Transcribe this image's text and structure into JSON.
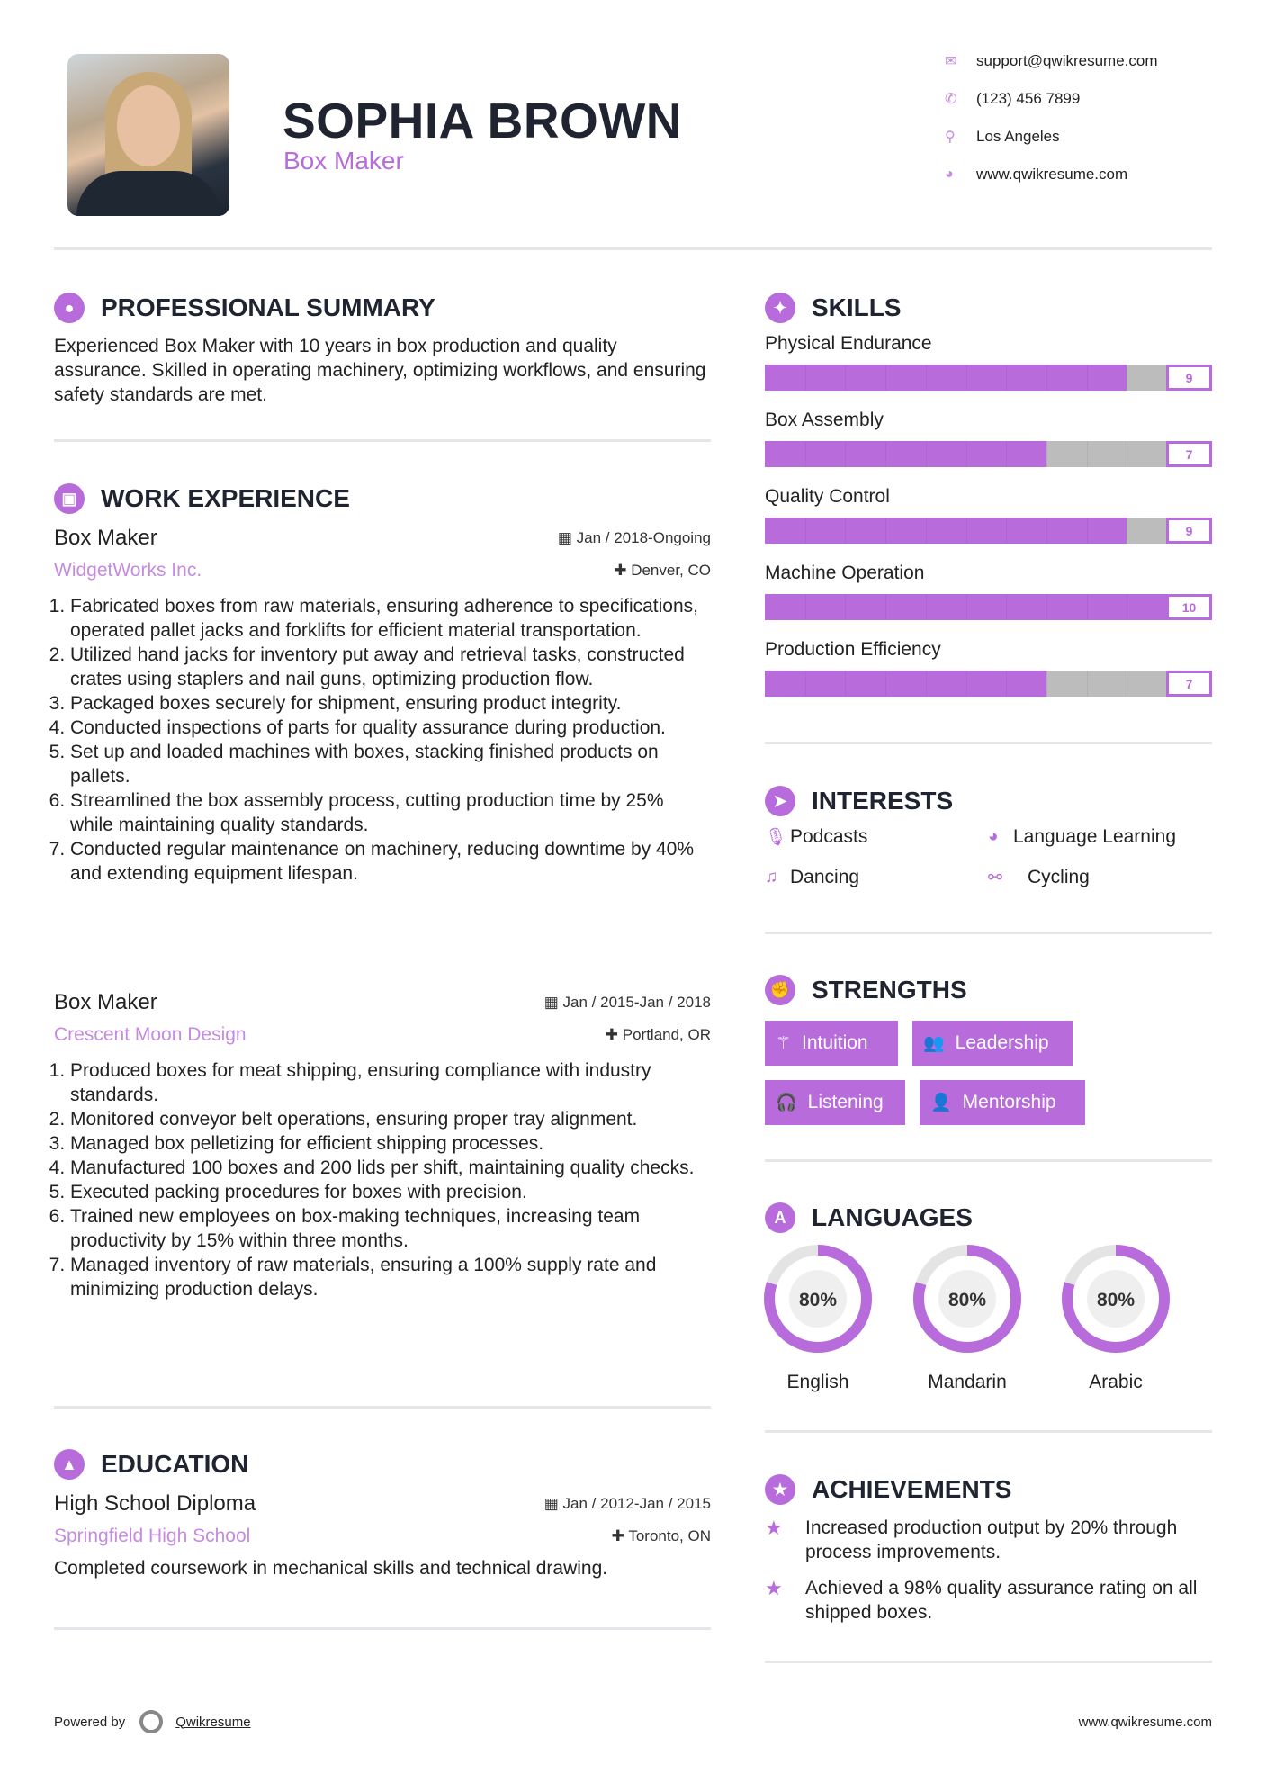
{
  "header": {
    "name": "SOPHIA BROWN",
    "title": "Box Maker",
    "contacts": [
      {
        "icon": "envelope-icon",
        "text": "support@qwikresume.com"
      },
      {
        "icon": "phone-icon",
        "text": "(123) 456 7899"
      },
      {
        "icon": "map-pin-icon",
        "text": "Los Angeles"
      },
      {
        "icon": "globe-icon",
        "text": "www.qwikresume.com"
      }
    ]
  },
  "summary": {
    "heading": "PROFESSIONAL SUMMARY",
    "text": "Experienced Box Maker with 10 years in box production and quality assurance. Skilled in operating machinery, optimizing workflows, and ensuring safety standards are met."
  },
  "experience": {
    "heading": "WORK EXPERIENCE",
    "jobs": [
      {
        "title": "Box Maker",
        "company": "WidgetWorks Inc.",
        "date": "Jan / 2018-Ongoing",
        "location": "Denver, CO",
        "items": [
          "Fabricated boxes from raw materials, ensuring adherence to specifications, operated pallet jacks and forklifts for efficient material transportation.",
          "Utilized hand jacks for inventory put away and retrieval tasks, constructed crates using staplers and nail guns, optimizing production flow.",
          "Packaged boxes securely for shipment, ensuring product integrity.",
          "Conducted inspections of parts for quality assurance during production.",
          "Set up and loaded machines with boxes, stacking finished products on pallets.",
          "Streamlined the box assembly process, cutting production time by 25% while maintaining quality standards.",
          "Conducted regular maintenance on machinery, reducing downtime by 40% and extending equipment lifespan."
        ]
      },
      {
        "title": "Box Maker",
        "company": "Crescent Moon Design",
        "date": "Jan / 2015-Jan / 2018",
        "location": "Portland, OR",
        "items": [
          "Produced boxes for meat shipping, ensuring compliance with industry standards.",
          "Monitored conveyor belt operations, ensuring proper tray alignment.",
          "Managed box pelletizing for efficient shipping processes.",
          "Manufactured 100 boxes and 200 lids per shift, maintaining quality checks.",
          "Executed packing procedures for boxes with precision.",
          "Trained new employees on box-making techniques, increasing team productivity by 15% within three months.",
          "Managed inventory of raw materials, ensuring a 100% supply rate and minimizing production delays."
        ]
      }
    ]
  },
  "education": {
    "heading": "EDUCATION",
    "degree": "High School Diploma",
    "school": "Springfield High School",
    "date": "Jan / 2012-Jan / 2015",
    "location": "Toronto, ON",
    "description": "Completed coursework in mechanical skills and technical drawing."
  },
  "skills": {
    "heading": "SKILLS",
    "max": 10,
    "items": [
      {
        "label": "Physical Endurance",
        "value": 9
      },
      {
        "label": "Box Assembly",
        "value": 7
      },
      {
        "label": "Quality Control",
        "value": 9
      },
      {
        "label": "Machine Operation",
        "value": 10
      },
      {
        "label": "Production Efficiency",
        "value": 7
      }
    ]
  },
  "interests": {
    "heading": "INTERESTS",
    "items": [
      {
        "icon": "microphone-icon",
        "label": "Podcasts"
      },
      {
        "icon": "globe-icon",
        "label": "Language Learning"
      },
      {
        "icon": "music-note-icon",
        "label": "Dancing"
      },
      {
        "icon": "bicycle-icon",
        "label": "Cycling"
      }
    ]
  },
  "strengths": {
    "heading": "STRENGTHS",
    "items": [
      {
        "icon": "magic-wand-icon",
        "label": "Intuition"
      },
      {
        "icon": "users-icon",
        "label": "Leadership"
      },
      {
        "icon": "headphones-icon",
        "label": "Listening"
      },
      {
        "icon": "user-plus-icon",
        "label": "Mentorship"
      }
    ]
  },
  "languages": {
    "heading": "LANGUAGES",
    "items": [
      {
        "label": "English",
        "percent": 80,
        "text": "80%"
      },
      {
        "label": "Mandarin",
        "percent": 80,
        "text": "80%"
      },
      {
        "label": "Arabic",
        "percent": 80,
        "text": "80%"
      }
    ]
  },
  "achievements": {
    "heading": "ACHIEVEMENTS",
    "items": [
      "Increased production output by 20% through process improvements.",
      "Achieved a 98% quality assurance rating on all shipped boxes."
    ]
  },
  "footer": {
    "powered": "Powered by",
    "brand": "Qwikresume",
    "url": "www.qwikresume.com"
  },
  "colors": {
    "accent": "#b86cdc",
    "bar_empty": "#bcbcbc",
    "text": "#1f2430"
  }
}
